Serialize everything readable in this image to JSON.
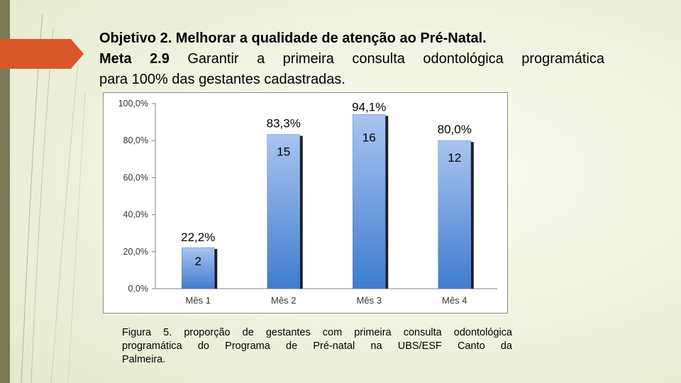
{
  "slide": {
    "title": {
      "objective": "Objetivo 2. Melhorar a qualidade de atenção ao Pré-Natal.",
      "meta_label": "Meta 2.9",
      "meta_text_line": " Garantir a primeira consulta odontológica programática",
      "meta_text_cont": "para 100% das gestantes cadastradas."
    },
    "caption": {
      "line1": "Figura 5. proporção de gestantes com primeira consulta odontológica",
      "line2": "programática do Programa de Pré-natal na UBS/ESF Canto da",
      "line3": "Palmeira."
    },
    "colors": {
      "stripe": "#7a7a55",
      "accent": "#d9562a",
      "bar_top": "#a9c4ef",
      "bar_bottom": "#3f7ccf"
    }
  },
  "chart_data": {
    "type": "bar",
    "categories": [
      "Mês 1",
      "Mês 2",
      "Mês 3",
      "Mês 4"
    ],
    "values": [
      22.2,
      83.3,
      94.1,
      80.0
    ],
    "value_labels": [
      "22,2%",
      "83,3%",
      "94,1%",
      "80,0%"
    ],
    "count_labels": [
      "2",
      "15",
      "16",
      "12"
    ],
    "ylim": [
      0,
      100
    ],
    "y_ticks": [
      0,
      20,
      40,
      60,
      80,
      100
    ],
    "y_tick_labels": [
      "0,0%",
      "20,0%",
      "40,0%",
      "60,0%",
      "80,0%",
      "100,0%"
    ],
    "grid": false,
    "legend": false
  }
}
